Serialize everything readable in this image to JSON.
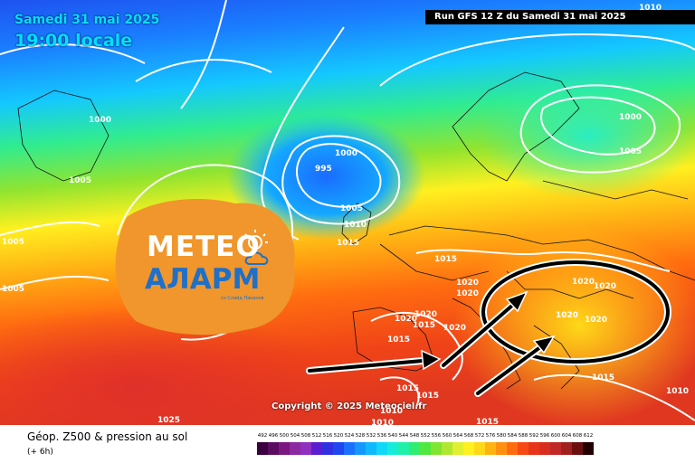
{
  "header": {
    "date_label": "Samedi 31 mai 2025",
    "time_label": "19:00 locale",
    "run_label": "Run GFS 12 Z du Samedi 31 mai 2025"
  },
  "copyright": "Copyright © 2025 Meteociel.fr",
  "footer": {
    "title": "Géop. Z500 & pression au sol",
    "subtitle": "(+ 6h)"
  },
  "legend": {
    "labels": [
      "492",
      "496",
      "500",
      "504",
      "508",
      "512",
      "516",
      "520",
      "524",
      "528",
      "532",
      "536",
      "540",
      "544",
      "548",
      "552",
      "556",
      "560",
      "564",
      "568",
      "572",
      "576",
      "580",
      "584",
      "588",
      "592",
      "596",
      "600",
      "604",
      "608",
      "612"
    ],
    "colors": [
      "#3a0040",
      "#5a0c60",
      "#7a1880",
      "#8c28a0",
      "#9030c0",
      "#5a1ed0",
      "#3030e0",
      "#2046f0",
      "#1a70ff",
      "#1498ff",
      "#10b8ff",
      "#10d8f8",
      "#18ecd8",
      "#20f0a8",
      "#30ec70",
      "#50e840",
      "#80e430",
      "#b0e830",
      "#e0f030",
      "#fff020",
      "#ffd818",
      "#ffb414",
      "#ff9010",
      "#ff6c10",
      "#f84814",
      "#e83418",
      "#d82c20",
      "#c02828",
      "#a02020",
      "#6a1010",
      "#200000"
    ]
  },
  "logo": {
    "line1": "МЕТЕО",
    "line2": "АЛАРМ",
    "tagline": "со Слайд Паканов",
    "orange": "#f0962c",
    "blue": "#1f70c8"
  },
  "isobar_labels": [
    "1000",
    "1010",
    "1005",
    "1000",
    "995",
    "1005",
    "1010",
    "1015",
    "1015",
    "1000",
    "1005",
    "1020",
    "1020",
    "1020",
    "1020",
    "1020",
    "1020",
    "1020",
    "1020",
    "1020",
    "1015",
    "1015",
    "1015",
    "1015",
    "1015",
    "1015",
    "1010",
    "1010",
    "1025",
    "1005",
    "1005",
    "1010"
  ]
}
